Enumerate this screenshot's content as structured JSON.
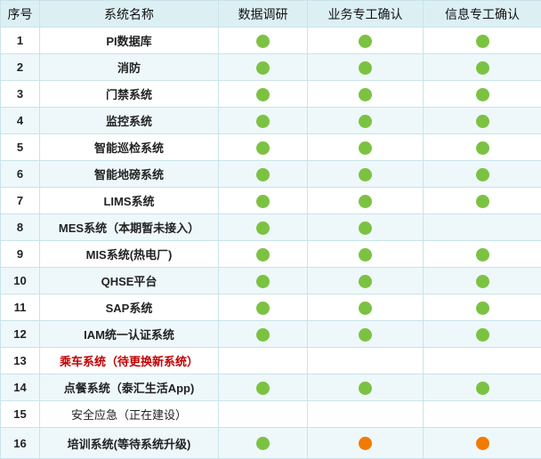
{
  "table": {
    "header": [
      "序号",
      "系统名称",
      "数据调研",
      "业务专工确认",
      "信息专工确认"
    ],
    "status_colors": {
      "done": "#7cc242",
      "pending": "#f27a00"
    },
    "name_color": {
      "alert": "#c00000"
    },
    "rows": [
      {
        "no": "1",
        "name": "PI数据库",
        "status": [
          "done",
          "done",
          "done"
        ]
      },
      {
        "no": "2",
        "name": "消防",
        "status": [
          "done",
          "done",
          "done"
        ]
      },
      {
        "no": "3",
        "name": "门禁系统",
        "status": [
          "done",
          "done",
          "done"
        ]
      },
      {
        "no": "4",
        "name": "监控系统",
        "status": [
          "done",
          "done",
          "done"
        ]
      },
      {
        "no": "5",
        "name": "智能巡检系统",
        "status": [
          "done",
          "done",
          "done"
        ]
      },
      {
        "no": "6",
        "name": "智能地磅系统",
        "status": [
          "done",
          "done",
          "done"
        ]
      },
      {
        "no": "7",
        "name": "LIMS系统",
        "status": [
          "done",
          "done",
          "done"
        ]
      },
      {
        "no": "8",
        "name": "MES系统（本期暂未接入）",
        "status": [
          "done",
          "done",
          null
        ]
      },
      {
        "no": "9",
        "name": "MIS系统(热电厂)",
        "status": [
          "done",
          "done",
          "done"
        ]
      },
      {
        "no": "10",
        "name": "QHSE平台",
        "status": [
          "done",
          "done",
          "done"
        ]
      },
      {
        "no": "11",
        "name": "SAP系统",
        "status": [
          "done",
          "done",
          "done"
        ]
      },
      {
        "no": "12",
        "name": "IAM统一认证系统",
        "status": [
          "done",
          "done",
          "done"
        ]
      },
      {
        "no": "13",
        "name": "乘车系统（待更换新系统）",
        "status": [
          null,
          null,
          null
        ],
        "style": "alert"
      },
      {
        "no": "14",
        "name": "点餐系统（泰汇生活App)",
        "status": [
          "done",
          "done",
          "done"
        ]
      },
      {
        "no": "15",
        "name": "安全应急（正在建设）",
        "status": [
          null,
          null,
          null
        ],
        "style": "plain"
      },
      {
        "no": "16",
        "name": "培训系统(等待系统升级)",
        "status": [
          "done",
          "pending",
          "pending"
        ]
      }
    ]
  }
}
